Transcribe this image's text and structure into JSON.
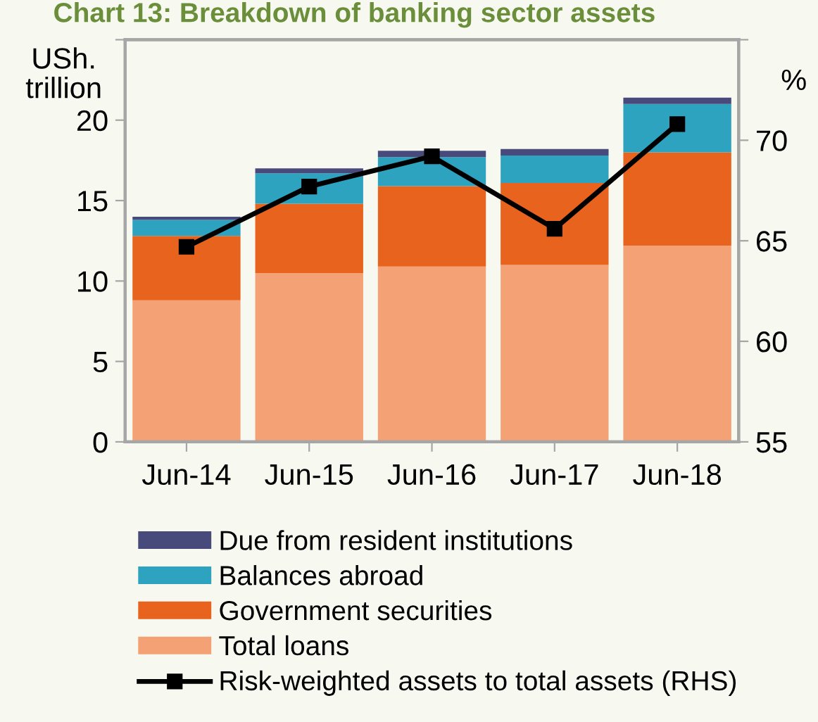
{
  "chart_data": {
    "type": "bar",
    "title": "Chart 13: Breakdown of banking sector assets",
    "ylabel": "USh.\ntrillion",
    "y2label": "%",
    "categories": [
      "Jun-14",
      "Jun-15",
      "Jun-16",
      "Jun-17",
      "Jun-18"
    ],
    "stacked": true,
    "series": [
      {
        "name": "Total loans",
        "color": "#f3a175",
        "values": [
          8.8,
          10.5,
          10.9,
          11.0,
          12.2
        ]
      },
      {
        "name": "Government securities",
        "color": "#e8631e",
        "values": [
          4.0,
          4.3,
          5.0,
          5.1,
          5.8
        ]
      },
      {
        "name": "Balances abroad",
        "color": "#2ea3c0",
        "values": [
          1.0,
          1.9,
          1.8,
          1.7,
          3.0
        ]
      },
      {
        "name": "Due from resident institutions",
        "color": "#474a7a",
        "values": [
          0.2,
          0.3,
          0.4,
          0.4,
          0.4
        ]
      },
      {
        "name": "Risk-weighted assets to total assets (RHS)",
        "type": "line",
        "axis": "y2",
        "color": "#000000",
        "marker": "square",
        "values": [
          64.7,
          67.7,
          69.2,
          65.6,
          70.8
        ]
      }
    ],
    "ylim": [
      0,
      25
    ],
    "yticks": [
      0,
      5,
      10,
      15,
      20,
      {
        "value": 25,
        "label": null
      }
    ],
    "y2lim": [
      55,
      75
    ],
    "y2ticks": [
      55,
      60,
      65,
      70,
      {
        "value": 75,
        "label": null
      }
    ],
    "grid": false,
    "legend": "bottom"
  }
}
